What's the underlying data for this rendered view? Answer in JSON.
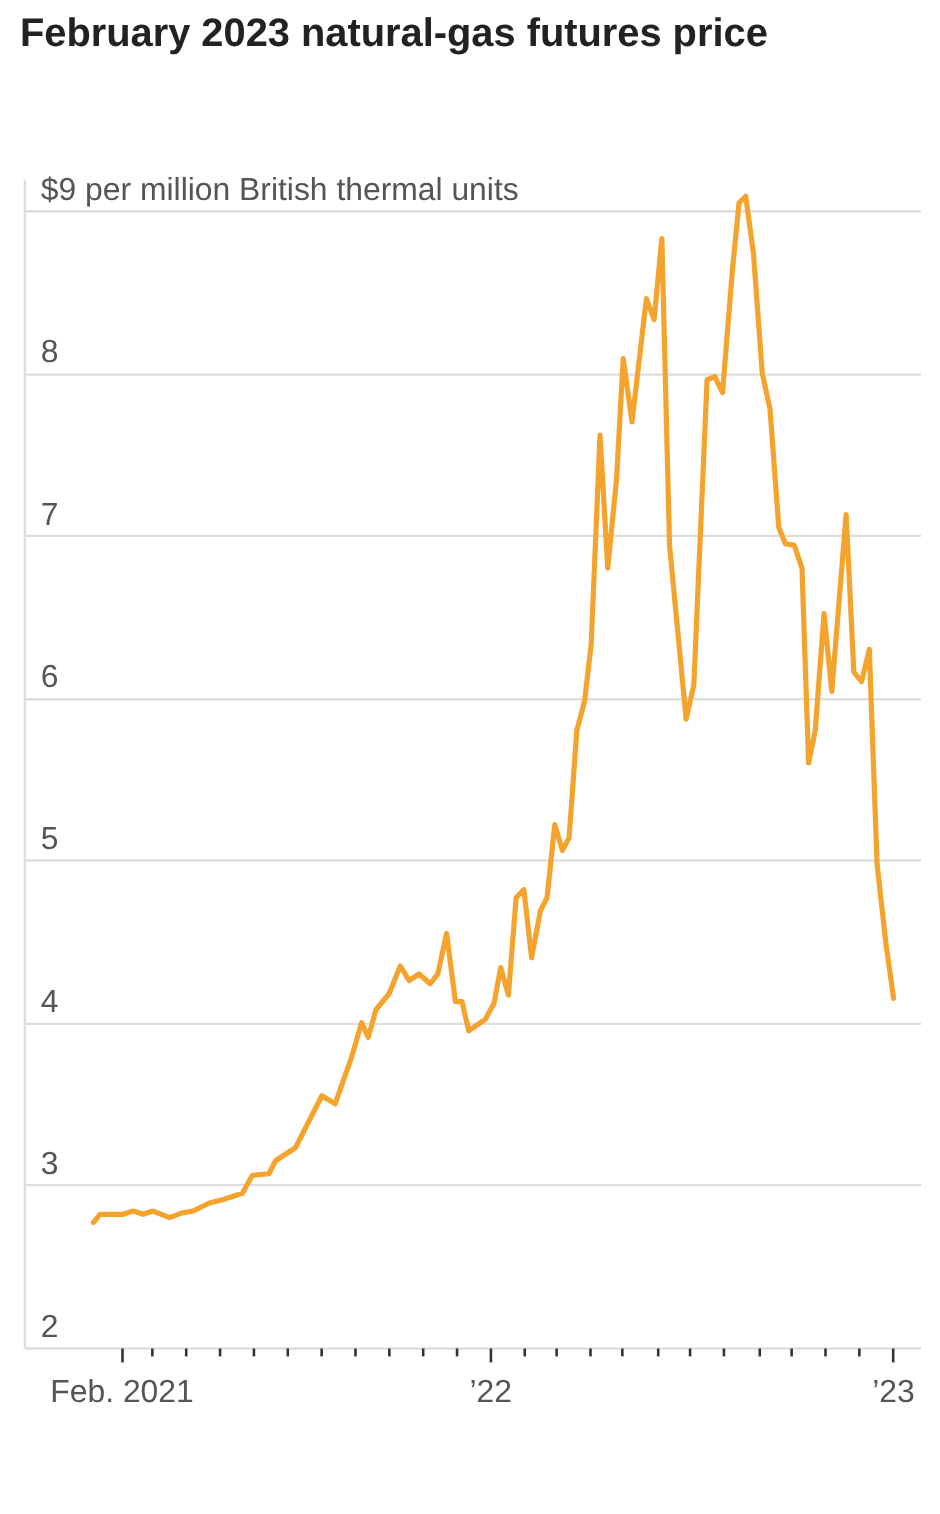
{
  "chart_data": {
    "type": "line",
    "title": "February 2023 natural-gas futures price",
    "x": [
      "2021-01-07",
      "2021-01-13",
      "2021-02-03",
      "2021-02-12",
      "2021-02-21",
      "2021-03-02",
      "2021-03-17",
      "2021-03-29",
      "2021-04-07",
      "2021-04-22",
      "2021-05-04",
      "2021-05-22",
      "2021-05-31",
      "2021-06-15",
      "2021-06-21",
      "2021-07-09",
      "2021-08-02",
      "2021-08-14",
      "2021-08-29",
      "2021-09-07",
      "2021-09-13",
      "2021-09-20",
      "2021-10-02",
      "2021-10-12",
      "2021-10-20",
      "2021-10-29",
      "2021-11-08",
      "2021-11-15",
      "2021-11-23",
      "2021-12-01",
      "2021-12-07",
      "2021-12-13",
      "2021-12-28",
      "2022-01-05",
      "2022-01-11",
      "2022-01-18",
      "2022-01-25",
      "2022-02-01",
      "2022-02-08",
      "2022-02-16",
      "2022-02-22",
      "2022-03-01",
      "2022-03-08",
      "2022-03-14",
      "2022-03-21",
      "2022-03-28",
      "2022-04-03",
      "2022-04-11",
      "2022-04-18",
      "2022-04-26",
      "2022-05-02",
      "2022-05-10",
      "2022-05-23",
      "2022-05-30",
      "2022-06-06",
      "2022-06-13",
      "2022-06-28",
      "2022-07-05",
      "2022-07-17",
      "2022-07-24",
      "2022-07-31",
      "2022-08-09",
      "2022-08-15",
      "2022-08-21",
      "2022-08-28",
      "2022-09-05",
      "2022-09-12",
      "2022-09-20",
      "2022-09-26",
      "2022-10-04",
      "2022-10-11",
      "2022-10-17",
      "2022-10-23",
      "2022-10-31",
      "2022-11-07",
      "2022-11-20",
      "2022-11-27",
      "2022-12-04",
      "2022-12-11",
      "2022-12-18",
      "2022-12-26",
      "2023-01-02"
    ],
    "series": [
      {
        "color": "#f4a32c",
        "values": [
          2.77,
          2.82,
          2.82,
          2.84,
          2.82,
          2.84,
          2.8,
          2.83,
          2.84,
          2.89,
          2.91,
          2.95,
          3.06,
          3.07,
          3.15,
          3.23,
          3.55,
          3.5,
          3.79,
          4.0,
          3.91,
          4.08,
          4.18,
          4.35,
          4.26,
          4.3,
          4.24,
          4.3,
          4.55,
          4.13,
          4.13,
          3.95,
          4.02,
          4.12,
          4.34,
          4.17,
          4.77,
          4.82,
          4.4,
          4.69,
          4.77,
          5.22,
          5.06,
          5.14,
          5.8,
          5.98,
          6.33,
          7.62,
          6.8,
          7.35,
          8.09,
          7.7,
          8.46,
          8.33,
          8.83,
          6.94,
          5.87,
          6.08,
          7.96,
          7.98,
          7.88,
          8.64,
          9.05,
          9.09,
          8.74,
          8.0,
          7.78,
          7.05,
          6.95,
          6.94,
          6.8,
          5.6,
          5.8,
          6.52,
          6.04,
          7.13,
          6.16,
          6.1,
          6.3,
          4.98,
          4.49,
          4.15
        ]
      }
    ],
    "xlim": [
      "2020-11-05",
      "2023-01-26"
    ],
    "xticks": [
      {
        "value": "2021-02",
        "label": "Feb. 2021"
      },
      {
        "value": "2021-03",
        "label": null
      },
      {
        "value": "2021-04",
        "label": null
      },
      {
        "value": "2021-05",
        "label": null
      },
      {
        "value": "2021-06",
        "label": null
      },
      {
        "value": "2021-07",
        "label": null
      },
      {
        "value": "2021-08",
        "label": null
      },
      {
        "value": "2021-09",
        "label": null
      },
      {
        "value": "2021-10",
        "label": null
      },
      {
        "value": "2021-11",
        "label": null
      },
      {
        "value": "2021-12",
        "label": null
      },
      {
        "value": "2022-01",
        "label": "’22"
      },
      {
        "value": "2022-02",
        "label": null
      },
      {
        "value": "2022-03",
        "label": null
      },
      {
        "value": "2022-04",
        "label": null
      },
      {
        "value": "2022-05",
        "label": null
      },
      {
        "value": "2022-06",
        "label": null
      },
      {
        "value": "2022-07",
        "label": null
      },
      {
        "value": "2022-08",
        "label": null
      },
      {
        "value": "2022-09",
        "label": null
      },
      {
        "value": "2022-10",
        "label": null
      },
      {
        "value": "2022-11",
        "label": null
      },
      {
        "value": "2022-12",
        "label": null
      },
      {
        "value": "2023-01",
        "label": "’23"
      }
    ],
    "ylim": [
      2,
      9.2
    ],
    "yticks": [
      2,
      3,
      4,
      5,
      6,
      7,
      8,
      {
        "value": 9,
        "label": "$9 per million British thermal units"
      }
    ],
    "grid": "y",
    "line_style": "solid"
  }
}
